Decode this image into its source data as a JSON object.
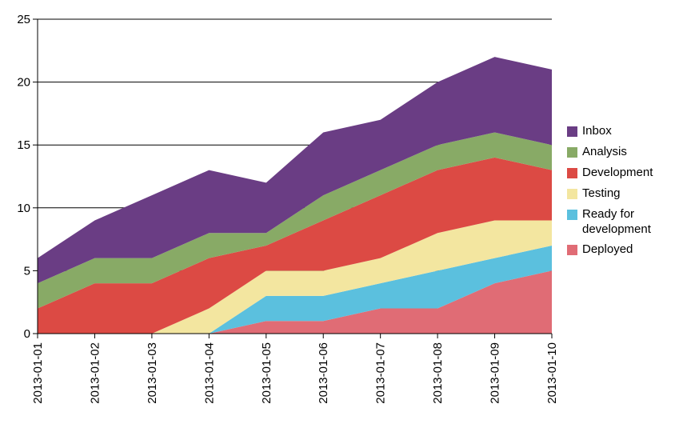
{
  "chart_data": {
    "type": "area",
    "stacked": true,
    "categories": [
      "2013-01-01",
      "2013-01-02",
      "2013-01-03",
      "2013-01-04",
      "2013-01-05",
      "2013-01-06",
      "2013-01-07",
      "2013-01-08",
      "2013-01-09",
      "2013-01-10"
    ],
    "series": [
      {
        "name": "Deployed",
        "color": "#e06c75",
        "values": [
          0,
          0,
          0,
          0,
          1,
          1,
          2,
          2,
          4,
          5
        ]
      },
      {
        "name": "Ready for development",
        "color": "#5bc0de",
        "values": [
          0,
          0,
          0,
          0,
          2,
          2,
          2,
          3,
          2,
          2
        ]
      },
      {
        "name": "Testing",
        "color": "#f3e6a0",
        "values": [
          0,
          0,
          0,
          2,
          2,
          2,
          2,
          3,
          3,
          2
        ]
      },
      {
        "name": "Development",
        "color": "#dc4a44",
        "values": [
          2,
          4,
          4,
          4,
          2,
          4,
          5,
          5,
          5,
          4
        ]
      },
      {
        "name": "Analysis",
        "color": "#88aa66",
        "values": [
          2,
          2,
          2,
          2,
          1,
          2,
          2,
          2,
          2,
          2
        ]
      },
      {
        "name": "Inbox",
        "color": "#6a3d84",
        "values": [
          2,
          3,
          5,
          5,
          4,
          5,
          4,
          5,
          6,
          6
        ]
      }
    ],
    "ylim": [
      0,
      25
    ],
    "yticks": [
      0,
      5,
      10,
      15,
      20,
      25
    ],
    "ytick_labels": [
      "0",
      "5",
      "10",
      "15",
      "20",
      "25"
    ],
    "grid": "horizontal",
    "legend_position": "right",
    "legend_order": [
      "Inbox",
      "Analysis",
      "Development",
      "Testing",
      "Ready for development",
      "Deployed"
    ],
    "legend_labels": [
      "Inbox",
      "Analysis",
      "Development",
      "Testing",
      "Ready for\ndevelopment",
      "Deployed"
    ]
  }
}
